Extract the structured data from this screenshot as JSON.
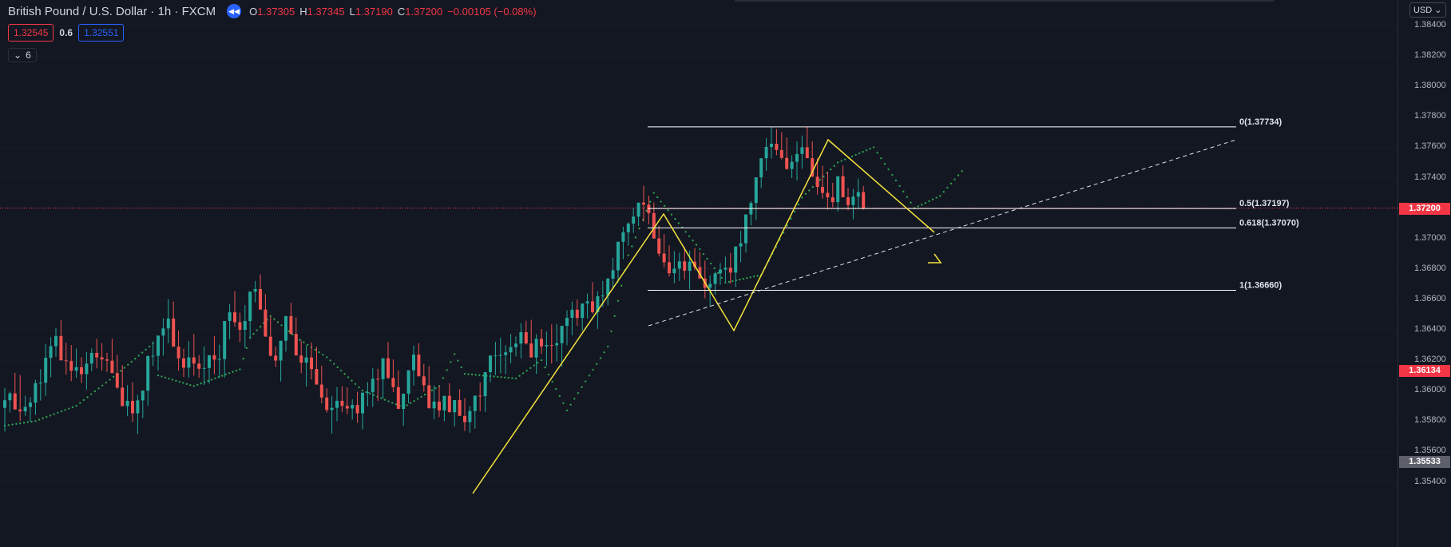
{
  "header": {
    "symbol": "British Pound / U.S. Dollar · 1h · FXCM",
    "replay_icon": "rewind-icon",
    "ohlc": [
      {
        "k": "O",
        "v": "1.37305"
      },
      {
        "k": "H",
        "v": "1.37345"
      },
      {
        "k": "L",
        "v": "1.37190"
      },
      {
        "k": "C",
        "v": "1.37200"
      },
      {
        "k": "",
        "v": "−0.00105 (−0.08%)"
      }
    ]
  },
  "spread": {
    "sell": "1.32545",
    "value": "0.6",
    "buy": "1.32551"
  },
  "indicators": {
    "count": "6"
  },
  "axis": {
    "currency": "USD",
    "ticks": [
      "1.38400",
      "1.38200",
      "1.38000",
      "1.37800",
      "1.37600",
      "1.37400",
      "1.37200",
      "1.37000",
      "1.36800",
      "1.36600",
      "1.36400",
      "1.36200",
      "1.36000",
      "1.35800",
      "1.35600",
      "1.35400"
    ],
    "current_price": "1.37200",
    "alt_price_1": "1.36134",
    "alt_price_2": "1.35533"
  },
  "fib_levels": [
    {
      "label": "0(1.37734)",
      "price": 1.37734
    },
    {
      "label": "0.5(1.37197)",
      "price": 1.37197
    },
    {
      "label": "0.618(1.37070)",
      "price": 1.3707
    },
    {
      "label": "1(1.36660)",
      "price": 1.3666
    }
  ],
  "colors": {
    "up": "#26a69a",
    "down": "#ef5350",
    "sar": "#2e9e4e",
    "zigzag": "#f5e33b",
    "fib": "#ffffff",
    "price_line": "#f23645"
  },
  "chart_data": {
    "type": "candlestick",
    "ylim": [
      1.354,
      1.385
    ],
    "candles_ohlc": [
      [
        1.35887,
        1.36017,
        1.35731,
        1.35937
      ],
      [
        1.35937,
        1.35993,
        1.35857,
        1.35982
      ],
      [
        1.35982,
        1.36117,
        1.35908,
        1.35876
      ],
      [
        1.35876,
        1.36103,
        1.35801,
        1.35864
      ],
      [
        1.35864,
        1.35966,
        1.35835,
        1.35893
      ],
      [
        1.35893,
        1.35958,
        1.35797,
        1.35921
      ],
      [
        1.35921,
        1.36072,
        1.35841,
        1.36049
      ],
      [
        1.36049,
        1.36141,
        1.35935,
        1.36052
      ],
      [
        1.36052,
        1.36306,
        1.35966,
        1.36216
      ],
      [
        1.36216,
        1.36351,
        1.36088,
        1.36292
      ],
      [
        1.36292,
        1.36411,
        1.36222,
        1.36359
      ],
      [
        1.36359,
        1.36465,
        1.36219,
        1.36199
      ],
      [
        1.36199,
        1.36315,
        1.36105,
        1.36195
      ],
      [
        1.36195,
        1.363,
        1.36063,
        1.36131
      ],
      [
        1.36131,
        1.36277,
        1.36084,
        1.36154
      ],
      [
        1.36154,
        1.3622,
        1.36051,
        1.36108
      ],
      [
        1.36108,
        1.36254,
        1.36007,
        1.36178
      ],
      [
        1.36178,
        1.36278,
        1.36129,
        1.36248
      ],
      [
        1.36248,
        1.36342,
        1.36147,
        1.36219
      ],
      [
        1.36219,
        1.36312,
        1.36132,
        1.36205
      ],
      [
        1.36205,
        1.36249,
        1.36124,
        1.36197
      ],
      [
        1.36197,
        1.36341,
        1.36156,
        1.36115
      ],
      [
        1.36115,
        1.36236,
        1.36011,
        1.3602
      ],
      [
        1.3602,
        1.36167,
        1.35925,
        1.35898
      ],
      [
        1.35898,
        1.36036,
        1.35832,
        1.35933
      ],
      [
        1.35933,
        1.36055,
        1.35794,
        1.35851
      ],
      [
        1.35851,
        1.35972,
        1.35714,
        1.35936
      ],
      [
        1.35936,
        1.36001,
        1.35819,
        1.36
      ],
      [
        1.36,
        1.36232,
        1.35901,
        1.36227
      ],
      [
        1.36227,
        1.36324,
        1.36163,
        1.36229
      ],
      [
        1.36229,
        1.36336,
        1.36132,
        1.36362
      ],
      [
        1.36362,
        1.36476,
        1.3623,
        1.36409
      ],
      [
        1.36409,
        1.36601,
        1.36312,
        1.36474
      ],
      [
        1.36474,
        1.36586,
        1.36354,
        1.36289
      ],
      [
        1.36289,
        1.36395,
        1.36131,
        1.36212
      ],
      [
        1.36212,
        1.36276,
        1.3609,
        1.36151
      ],
      [
        1.36151,
        1.36326,
        1.36086,
        1.36219
      ],
      [
        1.36219,
        1.36372,
        1.36098,
        1.36178
      ],
      [
        1.36178,
        1.36233,
        1.36085,
        1.36144
      ],
      [
        1.36144,
        1.36291,
        1.36037,
        1.36149
      ],
      [
        1.36149,
        1.3622,
        1.36047,
        1.36233
      ],
      [
        1.36233,
        1.36359,
        1.36109,
        1.36204
      ],
      [
        1.36204,
        1.36302,
        1.36085,
        1.36208
      ],
      [
        1.36208,
        1.36291,
        1.36086,
        1.36458
      ],
      [
        1.36458,
        1.36569,
        1.36338,
        1.36515
      ],
      [
        1.36515,
        1.36654,
        1.36421,
        1.3645
      ],
      [
        1.3645,
        1.36512,
        1.36319,
        1.364
      ],
      [
        1.364,
        1.36562,
        1.3628,
        1.36457
      ],
      [
        1.36457,
        1.36553,
        1.36338,
        1.36651
      ],
      [
        1.36651,
        1.36721,
        1.3658,
        1.36668
      ],
      [
        1.36668,
        1.36764,
        1.36575,
        1.36533
      ],
      [
        1.36533,
        1.36634,
        1.36462,
        1.36355
      ],
      [
        1.36355,
        1.36486,
        1.36224,
        1.3623
      ],
      [
        1.3623,
        1.36291,
        1.36156,
        1.36198
      ],
      [
        1.36198,
        1.36328,
        1.3606,
        1.36328
      ],
      [
        1.36328,
        1.36434,
        1.36256,
        1.3649
      ],
      [
        1.3649,
        1.36578,
        1.36371,
        1.36373
      ],
      [
        1.36373,
        1.36482,
        1.36259,
        1.36231
      ],
      [
        1.36231,
        1.36329,
        1.36115,
        1.36184
      ],
      [
        1.36184,
        1.36297,
        1.36026,
        1.36218
      ],
      [
        1.36218,
        1.36317,
        1.36073,
        1.36142
      ],
      [
        1.36142,
        1.36289,
        1.36041,
        1.3604
      ],
      [
        1.3604,
        1.36164,
        1.35917,
        1.35955
      ],
      [
        1.35955,
        1.36016,
        1.35855,
        1.35873
      ],
      [
        1.35873,
        1.35964,
        1.35717,
        1.35887
      ],
      [
        1.35887,
        1.36023,
        1.35799,
        1.35933
      ],
      [
        1.35933,
        1.36029,
        1.35859,
        1.359
      ],
      [
        1.359,
        1.36022,
        1.35845,
        1.35883
      ],
      [
        1.35883,
        1.35944,
        1.3581,
        1.35906
      ],
      [
        1.35906,
        1.35992,
        1.35788,
        1.35851
      ],
      [
        1.35851,
        1.35968,
        1.35746,
        1.35987
      ],
      [
        1.35987,
        1.36057,
        1.35897,
        1.3599
      ],
      [
        1.3599,
        1.36147,
        1.35893,
        1.36078
      ],
      [
        1.36078,
        1.36144,
        1.35933,
        1.36075
      ],
      [
        1.36075,
        1.36183,
        1.35947,
        1.36213
      ],
      [
        1.36213,
        1.36319,
        1.36077,
        1.36084
      ],
      [
        1.36084,
        1.36205,
        1.35991,
        1.36023
      ],
      [
        1.36023,
        1.36133,
        1.35917,
        1.3588
      ],
      [
        1.3588,
        1.35957,
        1.35769,
        1.3598
      ],
      [
        1.3598,
        1.36131,
        1.35917,
        1.36134
      ],
      [
        1.36134,
        1.36297,
        1.36033,
        1.36237
      ],
      [
        1.36237,
        1.36312,
        1.36175,
        1.36094
      ],
      [
        1.36094,
        1.36176,
        1.35993,
        1.36035
      ],
      [
        1.36035,
        1.3616,
        1.35976,
        1.35884
      ],
      [
        1.35884,
        1.36035,
        1.35812,
        1.35928
      ],
      [
        1.35928,
        1.36032,
        1.35826,
        1.3587
      ],
      [
        1.3587,
        1.35933,
        1.35801,
        1.35966
      ],
      [
        1.35966,
        1.36049,
        1.35889,
        1.35858
      ],
      [
        1.35858,
        1.35927,
        1.35764,
        1.35938
      ],
      [
        1.35938,
        1.3601,
        1.35846,
        1.35834
      ],
      [
        1.35834,
        1.3595,
        1.35735,
        1.35793
      ],
      [
        1.35793,
        1.35898,
        1.35724,
        1.35866
      ],
      [
        1.35866,
        1.35938,
        1.35751,
        1.35967
      ],
      [
        1.35967,
        1.36053,
        1.35865,
        1.35964
      ],
      [
        1.35964,
        1.36097,
        1.35859,
        1.36122
      ],
      [
        1.36122,
        1.36191,
        1.36056,
        1.36231
      ],
      [
        1.36231,
        1.36321,
        1.36102,
        1.36231
      ],
      [
        1.36231,
        1.36348,
        1.36114,
        1.36234
      ],
      [
        1.36234,
        1.36299,
        1.36107,
        1.36252
      ],
      [
        1.36252,
        1.36373,
        1.3618,
        1.36286
      ],
      [
        1.36286,
        1.36356,
        1.36225,
        1.36309
      ],
      [
        1.36309,
        1.36444,
        1.36212,
        1.36384
      ],
      [
        1.36384,
        1.36459,
        1.36303,
        1.3631
      ],
      [
        1.3631,
        1.36466,
        1.3624,
        1.36218
      ],
      [
        1.36218,
        1.36371,
        1.36111,
        1.36341
      ],
      [
        1.36341,
        1.36405,
        1.36242,
        1.36291
      ],
      [
        1.36291,
        1.36388,
        1.36162,
        1.363
      ],
      [
        1.363,
        1.36436,
        1.36178,
        1.36298
      ],
      [
        1.36298,
        1.36439,
        1.36191,
        1.36312
      ],
      [
        1.36312,
        1.36379,
        1.36156,
        1.36426
      ],
      [
        1.36426,
        1.36528,
        1.36298,
        1.36479
      ],
      [
        1.36479,
        1.36586,
        1.36364,
        1.36532
      ],
      [
        1.36532,
        1.36597,
        1.36426,
        1.36478
      ],
      [
        1.36478,
        1.36549,
        1.36393,
        1.36573
      ],
      [
        1.36573,
        1.36638,
        1.36475,
        1.36587
      ],
      [
        1.36587,
        1.36713,
        1.36505,
        1.36516
      ],
      [
        1.36516,
        1.36654,
        1.36406,
        1.36621
      ],
      [
        1.36621,
        1.36721,
        1.36551,
        1.36625
      ],
      [
        1.36625,
        1.36742,
        1.3656,
        1.36736
      ],
      [
        1.36736,
        1.36873,
        1.36667,
        1.36791
      ],
      [
        1.36791,
        1.3691,
        1.36709,
        1.36979
      ],
      [
        1.36979,
        1.37077,
        1.36865,
        1.37041
      ],
      [
        1.37041,
        1.37108,
        1.36952,
        1.37098
      ],
      [
        1.37098,
        1.37202,
        1.37037,
        1.37144
      ],
      [
        1.37144,
        1.37229,
        1.37082,
        1.37236
      ],
      [
        1.37236,
        1.37347,
        1.37109,
        1.37223
      ],
      [
        1.37223,
        1.37282,
        1.37094,
        1.37167
      ],
      [
        1.37167,
        1.37237,
        1.37097,
        1.37
      ],
      [
        1.37,
        1.37083,
        1.36882,
        1.36901
      ],
      [
        1.36901,
        1.37029,
        1.3681,
        1.36844
      ],
      [
        1.36844,
        1.36955,
        1.3675,
        1.36772
      ],
      [
        1.36772,
        1.36917,
        1.36706,
        1.36802
      ],
      [
        1.36802,
        1.36907,
        1.36721,
        1.3685
      ],
      [
        1.3685,
        1.36943,
        1.3673,
        1.36788
      ],
      [
        1.36788,
        1.3692,
        1.36667,
        1.36848
      ],
      [
        1.36848,
        1.36938,
        1.36791,
        1.36812
      ],
      [
        1.36812,
        1.36912,
        1.36745,
        1.36737
      ],
      [
        1.36737,
        1.36855,
        1.36607,
        1.36676
      ],
      [
        1.36676,
        1.36758,
        1.36551,
        1.36702
      ],
      [
        1.36702,
        1.36782,
        1.36631,
        1.36771
      ],
      [
        1.36771,
        1.36838,
        1.36695,
        1.36796
      ],
      [
        1.36796,
        1.36881,
        1.36716,
        1.36808
      ],
      [
        1.36808,
        1.36905,
        1.36703,
        1.36776
      ],
      [
        1.36776,
        1.36917,
        1.36682,
        1.36948
      ],
      [
        1.36948,
        1.37051,
        1.36843,
        1.36969
      ],
      [
        1.36969,
        1.37041,
        1.36908,
        1.37158
      ],
      [
        1.37158,
        1.37246,
        1.37086,
        1.37234
      ],
      [
        1.37234,
        1.3735,
        1.37122,
        1.37402
      ],
      [
        1.37402,
        1.37485,
        1.37332,
        1.37528
      ],
      [
        1.37528,
        1.37659,
        1.37445,
        1.37602
      ],
      [
        1.37602,
        1.37734,
        1.37526,
        1.37623
      ],
      [
        1.37623,
        1.37719,
        1.37547,
        1.37582
      ],
      [
        1.37582,
        1.37699,
        1.3752,
        1.3753
      ],
      [
        1.3753,
        1.37664,
        1.37452,
        1.37457
      ],
      [
        1.37457,
        1.37547,
        1.37397,
        1.37504
      ],
      [
        1.37504,
        1.37638,
        1.37381,
        1.37556
      ],
      [
        1.37556,
        1.37677,
        1.37459,
        1.376
      ],
      [
        1.376,
        1.37737,
        1.3753,
        1.37528
      ],
      [
        1.37528,
        1.37639,
        1.37443,
        1.37406
      ],
      [
        1.37406,
        1.37528,
        1.37289,
        1.37339
      ],
      [
        1.37339,
        1.37478,
        1.37263,
        1.373
      ],
      [
        1.373,
        1.3744,
        1.3719,
        1.37271
      ],
      [
        1.37271,
        1.37366,
        1.37205,
        1.37239
      ],
      [
        1.37239,
        1.37385,
        1.37177,
        1.3741
      ],
      [
        1.3741,
        1.3748,
        1.37294,
        1.37271
      ],
      [
        1.37271,
        1.37333,
        1.37186,
        1.3722
      ],
      [
        1.3722,
        1.37325,
        1.37126,
        1.37275
      ],
      [
        1.37275,
        1.37394,
        1.372,
        1.37305
      ],
      [
        1.37305,
        1.37345,
        1.3719,
        1.372
      ]
    ],
    "parabolic_sar": [
      [
        0,
        1.3577
      ],
      [
        6,
        1.358
      ],
      [
        14,
        1.359
      ],
      [
        22,
        1.3611
      ],
      [
        29,
        1.3631
      ],
      [
        30,
        1.361
      ],
      [
        37,
        1.3603
      ],
      [
        46,
        1.3614
      ],
      [
        48,
        1.3635
      ],
      [
        52,
        1.3649
      ],
      [
        57,
        1.3635
      ],
      [
        63,
        1.3622
      ],
      [
        70,
        1.36
      ],
      [
        78,
        1.3589
      ],
      [
        85,
        1.3603
      ],
      [
        88,
        1.3624
      ],
      [
        90,
        1.3611
      ],
      [
        100,
        1.3608
      ],
      [
        105,
        1.362
      ],
      [
        110,
        1.3587
      ],
      [
        118,
        1.3629
      ],
      [
        122,
        1.3689
      ],
      [
        127,
        1.373
      ],
      [
        136,
        1.3693
      ],
      [
        141,
        1.3671
      ],
      [
        148,
        1.3676
      ],
      [
        156,
        1.3727
      ],
      [
        163,
        1.375
      ],
      [
        170,
        1.376
      ],
      [
        178,
        1.372
      ],
      [
        183,
        1.3728
      ],
      [
        188,
        1.3747
      ]
    ]
  }
}
